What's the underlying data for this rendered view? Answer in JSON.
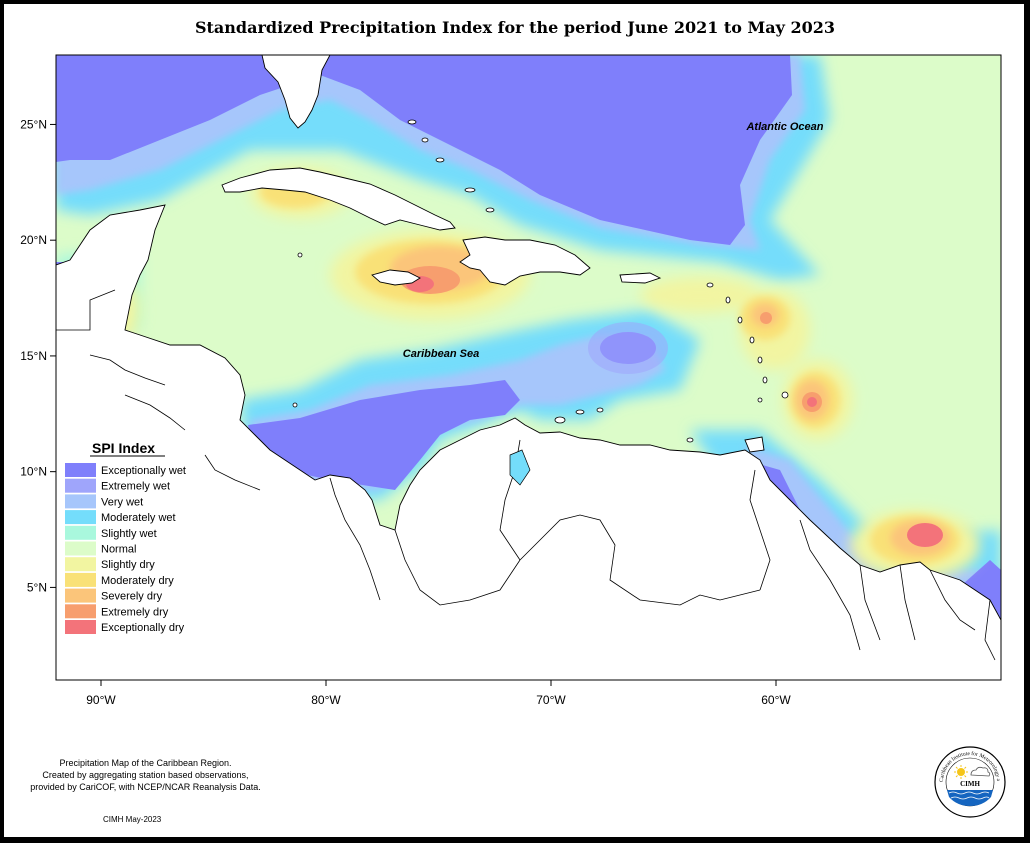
{
  "title": "Standardized Precipitation Index for the period June 2021 to May 2023",
  "axes": {
    "lat_ticks": [
      {
        "value": 25,
        "label": "25°N"
      },
      {
        "value": 20,
        "label": "20°N"
      },
      {
        "value": 15,
        "label": "15°N"
      },
      {
        "value": 10,
        "label": "10°N"
      },
      {
        "value": 5,
        "label": "5°N"
      }
    ],
    "lon_ticks": [
      {
        "value": -90,
        "label": "90°W"
      },
      {
        "value": -80,
        "label": "80°W"
      },
      {
        "value": -70,
        "label": "70°W"
      },
      {
        "value": -60,
        "label": "60°W"
      }
    ],
    "lon_range": [
      -92,
      -50
    ],
    "lat_range": [
      1,
      28
    ]
  },
  "labels": {
    "atlantic": "Atlantic Ocean",
    "caribbean": "Caribbean Sea"
  },
  "legend": {
    "title": "SPI Index",
    "items": [
      {
        "label": "Exceptionally wet",
        "color": "#7f7ffb"
      },
      {
        "label": "Extremely wet",
        "color": "#9fa5fb"
      },
      {
        "label": "Very wet",
        "color": "#a6c6fb"
      },
      {
        "label": "Moderately wet",
        "color": "#74ddfb"
      },
      {
        "label": "Slightly wet",
        "color": "#a9f8dd"
      },
      {
        "label": "Normal",
        "color": "#dcfcc9"
      },
      {
        "label": "Slightly dry",
        "color": "#f2f5a1"
      },
      {
        "label": "Moderately dry",
        "color": "#f9e177"
      },
      {
        "label": "Severely dry",
        "color": "#fbc57a"
      },
      {
        "label": "Extremely dry",
        "color": "#f79e6e"
      },
      {
        "label": "Exceptionally dry",
        "color": "#f3737a"
      }
    ]
  },
  "footer": {
    "line1": "Precipitation Map of the Caribbean Region.",
    "line2": "Created by aggregating station based observations,",
    "line3": "provided by CariCOF, with NCEP/NCAR Reanalysis Data.",
    "date": "CIMH May-2023"
  },
  "logo": {
    "arc_text": "Caribbean Institute for Meteorology and Hydrology",
    "abbr": "CIMH"
  }
}
